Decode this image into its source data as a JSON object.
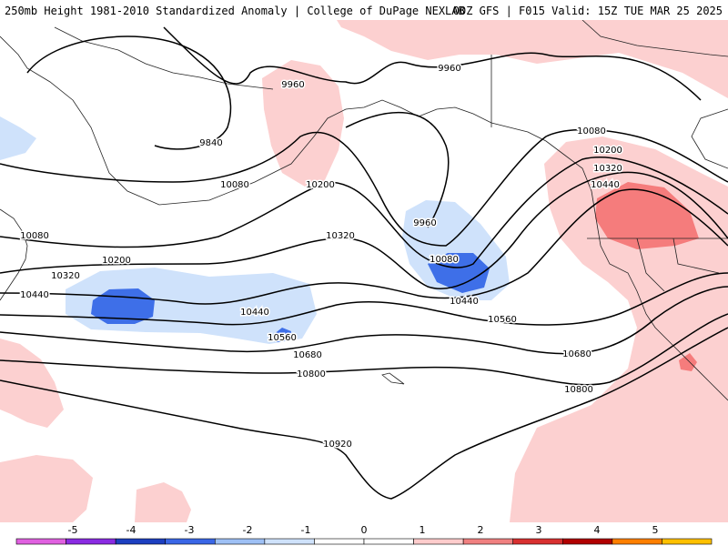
{
  "header": {
    "left": "250mb Height 1981-2010 Standardized Anomaly | College of DuPage NEXLAB",
    "right": "00Z GFS | F015 Valid: 15Z TUE MAR 25 2025"
  },
  "contour_labels": [
    {
      "text": "9960"
    },
    {
      "text": "9840"
    },
    {
      "text": "10080"
    },
    {
      "text": "10200"
    },
    {
      "text": "9960"
    },
    {
      "text": "9960"
    },
    {
      "text": "10080"
    },
    {
      "text": "10200"
    },
    {
      "text": "10320"
    },
    {
      "text": "10440"
    },
    {
      "text": "10080"
    },
    {
      "text": "10200"
    },
    {
      "text": "10320"
    },
    {
      "text": "10440"
    },
    {
      "text": "10440"
    },
    {
      "text": "10560"
    },
    {
      "text": "10560"
    },
    {
      "text": "10680"
    },
    {
      "text": "10680"
    },
    {
      "text": "10800"
    },
    {
      "text": "10800"
    },
    {
      "text": "10920"
    },
    {
      "text": "10080"
    },
    {
      "text": "10320"
    },
    {
      "text": "10440"
    }
  ],
  "colorbar": {
    "labels": [
      "-5",
      "-4",
      "-3",
      "-2",
      "-1",
      "0",
      "1",
      "2",
      "3",
      "4",
      "5"
    ],
    "colors": [
      "#e060e0",
      "#8a2be2",
      "#1c3fc0",
      "#3a66e6",
      "#9ec0f5",
      "#cfe2fb",
      "#ffffff",
      "#ffffff",
      "#ffcccc",
      "#f08080",
      "#d83030",
      "#b00000",
      "#ff7f00",
      "#ffc000"
    ]
  }
}
